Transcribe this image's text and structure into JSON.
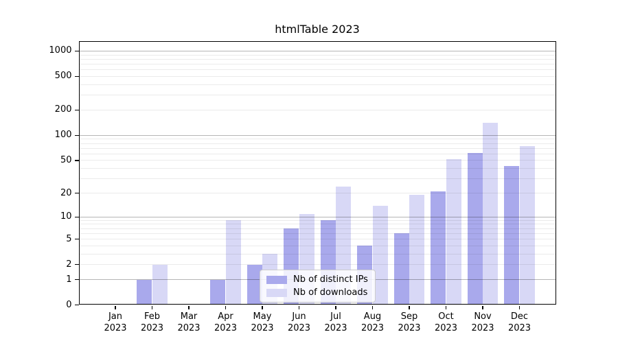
{
  "chart_data": {
    "type": "bar",
    "title": "htmlTable 2023",
    "categories": [
      "Jan",
      "Feb",
      "Mar",
      "Apr",
      "May",
      "Jun",
      "Jul",
      "Aug",
      "Sep",
      "Oct",
      "Nov",
      "Dec"
    ],
    "year": "2023",
    "series": [
      {
        "name": "Nb of distinct IPs",
        "color": "#a9a9ec",
        "values": [
          0,
          1,
          0,
          1,
          2,
          7,
          9,
          4,
          6,
          21,
          61,
          43
        ]
      },
      {
        "name": "Nb of downloads",
        "color": "#d8d8f6",
        "values": [
          0,
          2,
          0,
          9,
          3,
          11,
          24,
          14,
          19,
          52,
          140,
          75
        ]
      }
    ],
    "y_ticks": [
      0,
      1,
      2,
      5,
      10,
      20,
      50,
      100,
      200,
      500,
      1000
    ],
    "y_scale": "log10(1+value)",
    "ylim": [
      0,
      1320
    ],
    "major_grid_values": [
      1,
      10,
      100,
      1000
    ],
    "grid": "horizontal, drawn over bars",
    "legend_position": "lower center inside plot",
    "colors": {
      "major_grid": "#b5b5b5",
      "minor_grid": "#ececec",
      "axis": "#000000",
      "background": "#ffffff"
    }
  }
}
